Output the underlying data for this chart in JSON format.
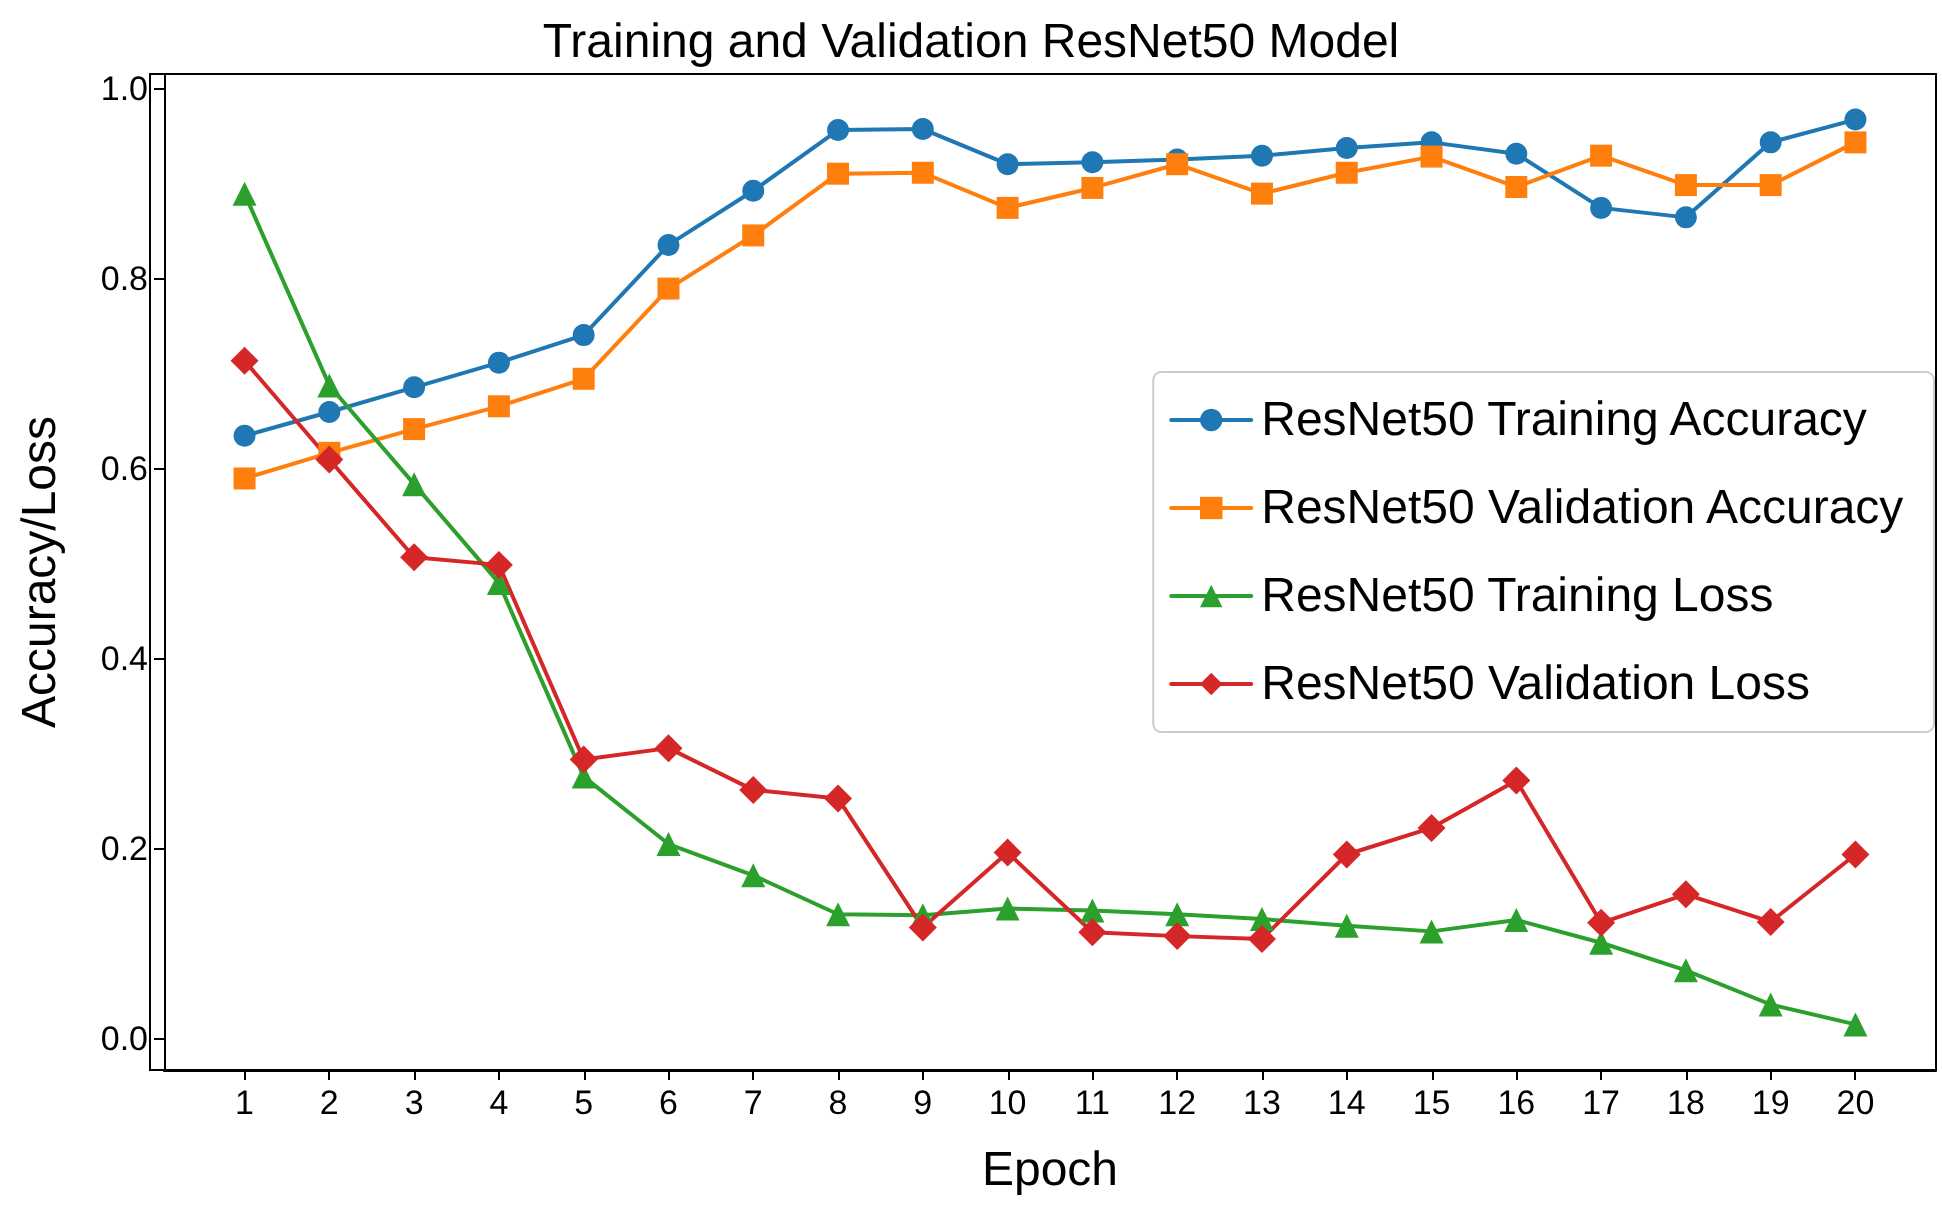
{
  "chart_data": {
    "type": "line",
    "title": "Training and Validation ResNet50 Model",
    "xlabel": "Epoch",
    "ylabel": "Accuracy/Loss",
    "x": [
      1,
      2,
      3,
      4,
      5,
      6,
      7,
      8,
      9,
      10,
      11,
      12,
      13,
      14,
      15,
      16,
      17,
      18,
      19,
      20
    ],
    "xlim": [
      0.05,
      20.95
    ],
    "xticks": [
      1,
      2,
      3,
      4,
      5,
      6,
      7,
      8,
      9,
      10,
      11,
      12,
      13,
      14,
      15,
      16,
      17,
      18,
      19,
      20
    ],
    "ylim": [
      -0.033,
      1.016
    ],
    "yticks": [
      {
        "value": 0,
        "label": "0.0"
      },
      {
        "value": 0.2,
        "label": "0.2"
      },
      {
        "value": 0.4,
        "label": "0.4"
      },
      {
        "value": 0.6,
        "label": "0.6"
      },
      {
        "value": 0.8,
        "label": "0.8"
      },
      {
        "value": 1,
        "label": "1.0"
      }
    ],
    "grid": false,
    "legend": "right",
    "line_style": "solid",
    "series": [
      {
        "name": "ResNet50 Training Accuracy",
        "color": "#1f77b4",
        "marker": "circle",
        "values": [
          0.635,
          0.66,
          0.686,
          0.712,
          0.741,
          0.836,
          0.893,
          0.957,
          0.958,
          0.921,
          0.923,
          0.926,
          0.93,
          0.938,
          0.944,
          0.932,
          0.875,
          0.865,
          0.944,
          0.968
        ]
      },
      {
        "name": "ResNet50 Validation Accuracy",
        "color": "#ff7f0e",
        "marker": "square",
        "values": [
          0.59,
          0.617,
          0.642,
          0.666,
          0.695,
          0.79,
          0.846,
          0.911,
          0.912,
          0.875,
          0.896,
          0.921,
          0.89,
          0.912,
          0.929,
          0.897,
          0.93,
          0.899,
          0.899,
          0.944
        ]
      },
      {
        "name": "ResNet50 Training Loss",
        "color": "#2ca02c",
        "marker": "triangle",
        "values": [
          0.89,
          0.688,
          0.584,
          0.48,
          0.276,
          0.205,
          0.172,
          0.131,
          0.13,
          0.137,
          0.135,
          0.131,
          0.126,
          0.119,
          0.113,
          0.125,
          0.101,
          0.072,
          0.036,
          0.015
        ]
      },
      {
        "name": "ResNet50 Validation Loss",
        "color": "#d62728",
        "marker": "diamond",
        "values": [
          0.714,
          0.61,
          0.507,
          0.499,
          0.294,
          0.306,
          0.262,
          0.253,
          0.117,
          0.196,
          0.112,
          0.108,
          0.105,
          0.194,
          0.222,
          0.272,
          0.122,
          0.152,
          0.123,
          0.194
        ]
      }
    ]
  }
}
